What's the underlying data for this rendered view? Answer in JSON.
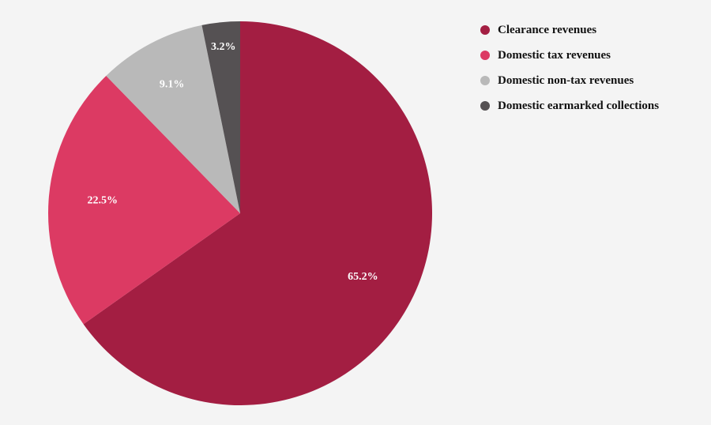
{
  "chart_data": {
    "type": "pie",
    "title": "",
    "legend_position": "top-right",
    "start_angle": "12 o'clock, clockwise",
    "slices": [
      {
        "name": "Clearance revenues",
        "value": 65.2,
        "label": "65.2%",
        "color": "#a31e42"
      },
      {
        "name": "Domestic tax revenues",
        "value": 22.5,
        "label": "22.5%",
        "color": "#dc3a63"
      },
      {
        "name": "Domestic non-tax revenues",
        "value": 9.1,
        "label": "9.1%",
        "color": "#b9b9b9"
      },
      {
        "name": "Domestic earmarked collections",
        "value": 3.2,
        "label": "3.2%",
        "color": "#555153"
      }
    ]
  }
}
